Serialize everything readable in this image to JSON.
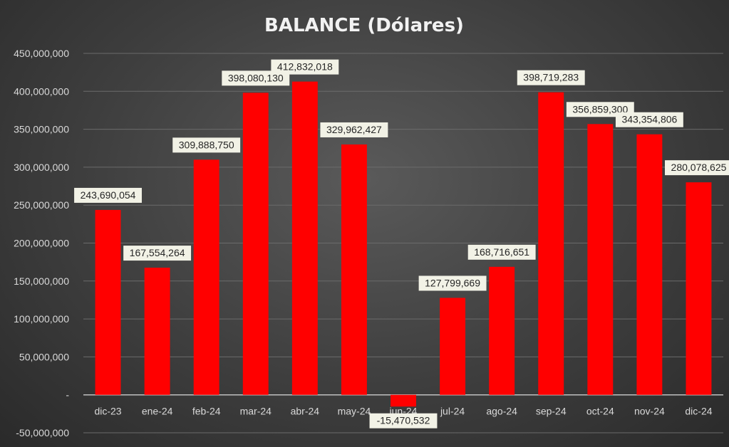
{
  "chart_data": {
    "type": "bar",
    "title": "BALANCE (Dólares)",
    "xlabel": "",
    "ylabel": "",
    "ylim": [
      -50000000,
      450000000
    ],
    "yticks": [
      -50000000,
      0,
      50000000,
      100000000,
      150000000,
      200000000,
      250000000,
      300000000,
      350000000,
      400000000,
      450000000
    ],
    "ytick_labels": [
      "-50,000,000",
      "-",
      "50,000,000",
      "100,000,000",
      "150,000,000",
      "200,000,000",
      "250,000,000",
      "300,000,000",
      "350,000,000",
      "400,000,000",
      "450,000,000"
    ],
    "categories": [
      "dic-23",
      "ene-24",
      "feb-24",
      "mar-24",
      "abr-24",
      "may-24",
      "jun-24",
      "jul-24",
      "ago-24",
      "sep-24",
      "oct-24",
      "nov-24",
      "dic-24"
    ],
    "values": [
      243690054,
      167554264,
      309888750,
      398080130,
      412832018,
      329962427,
      -15470532,
      127799669,
      168716651,
      398719283,
      356859300,
      343354806,
      280078625
    ],
    "data_labels": [
      "243,690,054",
      "167,554,264",
      "309,888,750",
      "398,080,130",
      "412,832,018",
      "329,962,427",
      "-15,470,532",
      "127,799,669",
      "168,716,651",
      "398,719,283",
      "356,859,300",
      "343,354,806",
      "280,078,625"
    ],
    "bar_color": "#ff0000",
    "grid": true,
    "legend": "none"
  }
}
